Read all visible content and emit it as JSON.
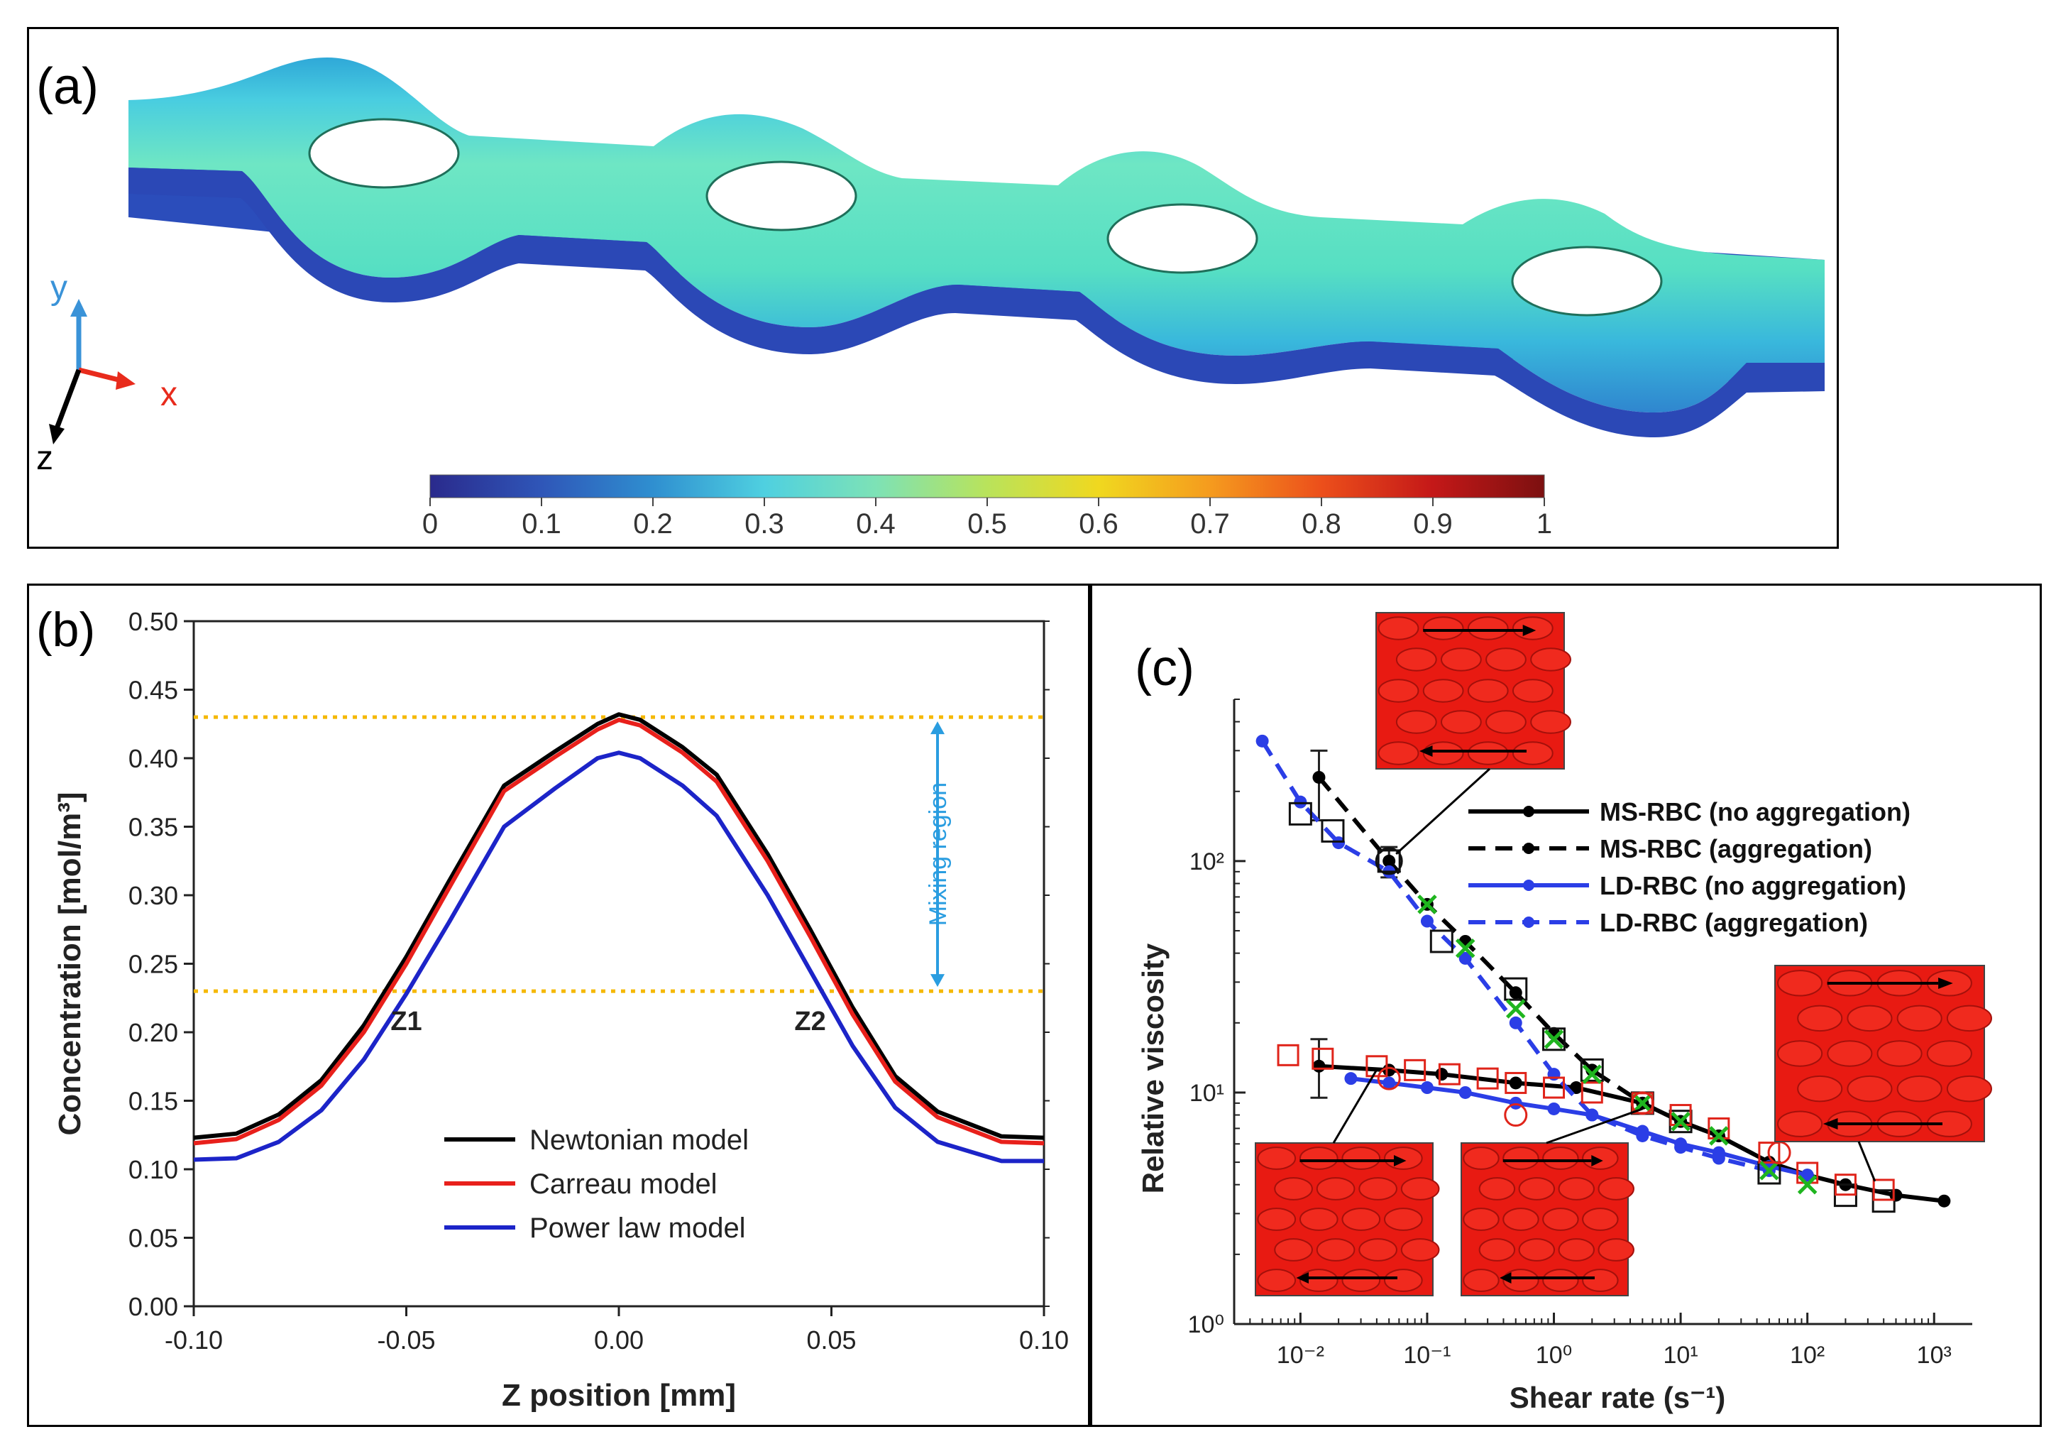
{
  "panel_a": {
    "label": "(a)",
    "axes": {
      "y": "y",
      "x": "x",
      "z": "z"
    },
    "colorbar": {
      "ticks": [
        "0",
        "0.1",
        "0.2",
        "0.3",
        "0.4",
        "0.5",
        "0.6",
        "0.7",
        "0.8",
        "0.9",
        "1"
      ],
      "stops": [
        "#2a2a8c",
        "#2f56b8",
        "#2f8fd0",
        "#4fd0e0",
        "#7de2b6",
        "#b9e35b",
        "#f0d81f",
        "#f59b1e",
        "#ec4f1b",
        "#c41818",
        "#7c1010"
      ]
    },
    "colors": {
      "body": "#56e0c2",
      "edge": "#2fa8d8",
      "bottom": "#2b4dbb",
      "side": "#3361c8"
    }
  },
  "chart_data": [
    {
      "type": "line",
      "panel_label": "(b)",
      "xlabel": "Z position [mm]",
      "ylabel": "Concentration [mol/m³]",
      "xlim": [
        -0.1,
        0.1
      ],
      "ylim": [
        0,
        0.5
      ],
      "x_ticks": [
        "-0.10",
        "-0.05",
        "0.00",
        "0.05",
        "0.10"
      ],
      "y_ticks": [
        "0.00",
        "0.05",
        "0.10",
        "0.15",
        "0.20",
        "0.25",
        "0.30",
        "0.35",
        "0.40",
        "0.45",
        "0.50"
      ],
      "hlines": [
        0.43,
        0.23
      ],
      "annotations": {
        "mixing_region": "Mixing region",
        "z1": "Z1",
        "z2": "Z2"
      },
      "x": [
        -0.1,
        -0.09,
        -0.08,
        -0.07,
        -0.06,
        -0.05,
        -0.04,
        -0.027,
        -0.015,
        -0.005,
        0.0,
        0.005,
        0.015,
        0.023,
        0.035,
        0.045,
        0.055,
        0.065,
        0.075,
        0.09,
        0.1
      ],
      "series": [
        {
          "name": "Newtonian model",
          "color": "#000000",
          "values": [
            0.123,
            0.126,
            0.14,
            0.165,
            0.205,
            0.255,
            0.31,
            0.38,
            0.405,
            0.425,
            0.432,
            0.428,
            0.408,
            0.388,
            0.33,
            0.275,
            0.218,
            0.168,
            0.142,
            0.124,
            0.123
          ]
        },
        {
          "name": "Carreau model",
          "color": "#e8201b",
          "values": [
            0.119,
            0.122,
            0.136,
            0.161,
            0.2,
            0.25,
            0.305,
            0.376,
            0.401,
            0.421,
            0.428,
            0.424,
            0.404,
            0.383,
            0.325,
            0.27,
            0.213,
            0.164,
            0.138,
            0.12,
            0.119
          ]
        },
        {
          "name": "Power law model",
          "color": "#1c24c8",
          "values": [
            0.107,
            0.108,
            0.12,
            0.143,
            0.18,
            0.228,
            0.28,
            0.35,
            0.378,
            0.4,
            0.404,
            0.4,
            0.38,
            0.358,
            0.3,
            0.245,
            0.19,
            0.145,
            0.12,
            0.106,
            0.106
          ]
        }
      ]
    },
    {
      "type": "line",
      "panel_label": "(c)",
      "xlabel": "Shear rate (s⁻¹)",
      "ylabel": "Relative viscosity",
      "xscale": "log",
      "yscale": "log",
      "xlim": [
        0.003,
        2000
      ],
      "ylim": [
        1,
        500
      ],
      "x_ticks": [
        "10⁻²",
        "10⁻¹",
        "10⁰",
        "10¹",
        "10²",
        "10³"
      ],
      "y_ticks": [
        "10⁰",
        "10¹",
        "10²"
      ],
      "series": [
        {
          "name": "MS-RBC (no aggregation)",
          "color": "#000000",
          "style": "solid",
          "x": [
            0.014,
            0.05,
            0.13,
            0.5,
            1.5,
            5,
            10,
            20,
            50,
            100,
            200,
            500,
            1200
          ],
          "values": [
            13,
            12.5,
            12,
            11,
            10.5,
            9,
            7.5,
            6.5,
            5,
            4.4,
            4,
            3.6,
            3.4
          ]
        },
        {
          "name": "MS-RBC (aggregation)",
          "color": "#000000",
          "style": "dashed",
          "x": [
            0.014,
            0.05,
            0.1,
            0.2,
            0.5,
            1,
            2,
            5,
            10,
            20,
            50
          ],
          "values": [
            230,
            100,
            65,
            45,
            27,
            18,
            12.5,
            9,
            7.5,
            6.5,
            5
          ]
        },
        {
          "name": "LD-RBC (no aggregation)",
          "color": "#2b3ee6",
          "style": "solid",
          "x": [
            0.025,
            0.05,
            0.1,
            0.2,
            0.5,
            1,
            2,
            5,
            10,
            20,
            50,
            100
          ],
          "values": [
            11.5,
            11,
            10.5,
            10,
            9,
            8.5,
            8,
            6.8,
            6,
            5.5,
            4.8,
            4.4
          ]
        },
        {
          "name": "LD-RBC (aggregation)",
          "color": "#2b3ee6",
          "style": "dashed",
          "x": [
            0.005,
            0.01,
            0.02,
            0.05,
            0.1,
            0.2,
            0.5,
            1,
            2,
            5,
            10,
            20,
            50
          ],
          "values": [
            330,
            180,
            120,
            90,
            55,
            38,
            20,
            12,
            8,
            6.5,
            5.8,
            5.2,
            4.6
          ]
        }
      ],
      "markers": {
        "black_squares": {
          "x": [
            0.01,
            0.018,
            0.05,
            0.13,
            0.5,
            1,
            2,
            5,
            10,
            50,
            200,
            400
          ],
          "values": [
            160,
            135,
            100,
            45,
            28,
            17,
            12.5,
            9,
            7.5,
            4.5,
            3.6,
            3.4
          ]
        },
        "red_squares": {
          "x": [
            0.008,
            0.015,
            0.04,
            0.08,
            0.15,
            0.3,
            0.5,
            1,
            2,
            5,
            10,
            20,
            50,
            100,
            200,
            400
          ],
          "values": [
            14.5,
            14,
            13,
            12.5,
            12,
            11.5,
            11,
            10.5,
            10,
            9,
            8,
            7,
            5.5,
            4.5,
            4,
            3.8
          ]
        },
        "green_x": {
          "x": [
            0.1,
            0.2,
            0.5,
            1,
            2,
            5,
            10,
            20,
            50,
            100
          ],
          "values": [
            65,
            42,
            23,
            17,
            12,
            9,
            7.5,
            6.5,
            4.6,
            4
          ]
        },
        "black_circles": {
          "x": [
            0.05
          ],
          "values": [
            100
          ]
        },
        "red_circles": {
          "x": [
            0.05,
            0.5,
            5,
            60
          ],
          "values": [
            11.5,
            8,
            9,
            5.5
          ]
        }
      },
      "errorbars": [
        {
          "x": 0.014,
          "value": 230,
          "lo": 150,
          "hi": 300
        },
        {
          "x": 0.014,
          "value": 13,
          "lo": 9.5,
          "hi": 17
        },
        {
          "x": 0.05,
          "value": 100,
          "lo": 85,
          "hi": 115
        }
      ]
    }
  ]
}
